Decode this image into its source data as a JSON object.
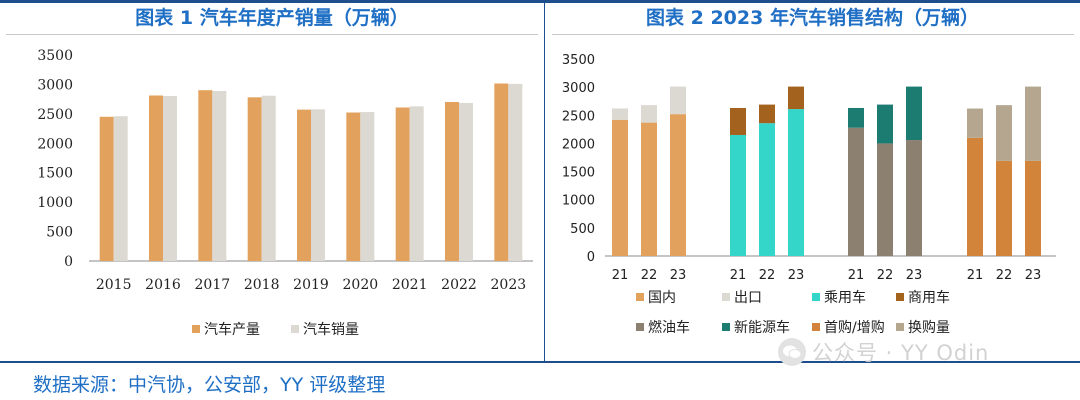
{
  "left_title": "图表 1 汽车年度产销量（万辆）",
  "right_title": "图表 2 2023 年汽车销售结构（万辆）",
  "source_note": "数据来源：中汽协，公安部，YY 评级整理",
  "watermark": "公众号 · YY Odin",
  "colors": {
    "brand": "#1f6fc5",
    "production": "#e2a15c",
    "sales": "#dcd8d2",
    "domestic": "#e2a15c",
    "export": "#dcd8d2",
    "passenger": "#33d6c8",
    "commercial": "#a4621f",
    "ice": "#8c8170",
    "nev": "#1d7c72",
    "first": "#d1843a",
    "replace": "#b4a68f"
  },
  "chart_data": [
    {
      "type": "bar",
      "title": "图表 1 汽车年度产销量（万辆）",
      "categories": [
        "2015",
        "2016",
        "2017",
        "2018",
        "2019",
        "2020",
        "2021",
        "2022",
        "2023"
      ],
      "series": [
        {
          "name": "汽车产量",
          "values": [
            2450,
            2812,
            2902,
            2781,
            2572,
            2523,
            2608,
            2702,
            3016
          ]
        },
        {
          "name": "汽车销量",
          "values": [
            2460,
            2803,
            2888,
            2808,
            2577,
            2531,
            2628,
            2686,
            3009
          ]
        }
      ],
      "ylim": [
        0,
        3500
      ],
      "yticks": [
        0,
        500,
        1000,
        1500,
        2000,
        2500,
        3000,
        3500
      ],
      "legend": "bottom"
    },
    {
      "type": "bar",
      "stacked": true,
      "title": "图表 2 2023 年汽车销售结构（万辆）",
      "groups": [
        {
          "categories": [
            "21",
            "22",
            "23"
          ],
          "series": [
            {
              "name": "国内",
              "values": [
                2420,
                2370,
                2520
              ]
            },
            {
              "name": "出口",
              "values": [
                200,
                310,
                490
              ]
            }
          ]
        },
        {
          "categories": [
            "21",
            "22",
            "23"
          ],
          "series": [
            {
              "name": "乘用车",
              "values": [
                2150,
                2360,
                2610
              ]
            },
            {
              "name": "商用车",
              "values": [
                480,
                330,
                400
              ]
            }
          ]
        },
        {
          "categories": [
            "21",
            "22",
            "23"
          ],
          "series": [
            {
              "name": "燃油车",
              "values": [
                2280,
                2000,
                2060
              ]
            },
            {
              "name": "新能源车",
              "values": [
                350,
                690,
                950
              ]
            }
          ]
        },
        {
          "categories": [
            "21",
            "22",
            "23"
          ],
          "series": [
            {
              "name": "首购/增购",
              "values": [
                2100,
                1690,
                1690
              ]
            },
            {
              "name": "换购量",
              "values": [
                520,
                990,
                1320
              ]
            }
          ]
        }
      ],
      "ylim": [
        0,
        3500
      ],
      "yticks": [
        0,
        500,
        1000,
        1500,
        2000,
        2500,
        3000,
        3500
      ],
      "legend": [
        [
          "国内",
          "出口",
          "乘用车",
          "商用车"
        ],
        [
          "燃油车",
          "新能源车",
          "首购/增购",
          "换购量"
        ]
      ]
    }
  ]
}
